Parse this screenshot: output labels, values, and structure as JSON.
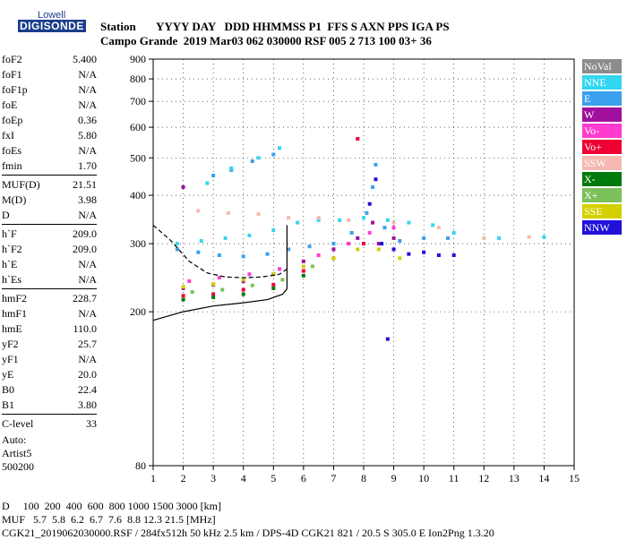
{
  "logo": {
    "top": "Lowell",
    "main": "DIGISONDE"
  },
  "header": {
    "line1": "Station       YYYY DAY   DDD HHMMSS P1  FFS S AXN PPS IGA PS",
    "line2": "Campo Grande  2019 Mar03 062 030000 RSF 005 2 713 100 03+ 36"
  },
  "params": [
    {
      "name": "foF2",
      "value": "5.400"
    },
    {
      "name": "foF1",
      "value": "N/A"
    },
    {
      "name": "foF1p",
      "value": "N/A"
    },
    {
      "name": "foE",
      "value": "N/A"
    },
    {
      "name": "foEp",
      "value": "0.36"
    },
    {
      "name": "fxI",
      "value": "5.80"
    },
    {
      "name": "foEs",
      "value": "N/A"
    },
    {
      "name": "fmin",
      "value": "1.70"
    },
    {
      "name": "MUF(D)",
      "value": "21.51",
      "sep": true
    },
    {
      "name": "M(D)",
      "value": "3.98"
    },
    {
      "name": "D",
      "value": "N/A"
    },
    {
      "name": "h`F",
      "value": "209.0",
      "sep": true
    },
    {
      "name": "h`F2",
      "value": "209.0"
    },
    {
      "name": "h`E",
      "value": "N/A"
    },
    {
      "name": "h`Es",
      "value": "N/A"
    },
    {
      "name": "hmF2",
      "value": "228.7",
      "sep": true
    },
    {
      "name": "hmF1",
      "value": "N/A"
    },
    {
      "name": "hmE",
      "value": "110.0"
    },
    {
      "name": "yF2",
      "value": "25.7"
    },
    {
      "name": "yF1",
      "value": "N/A"
    },
    {
      "name": "yE",
      "value": "20.0"
    },
    {
      "name": "B0",
      "value": "22.4"
    },
    {
      "name": "B1",
      "value": "3.80"
    },
    {
      "name": "C-level",
      "value": "33",
      "sep": true
    }
  ],
  "auto": {
    "line1": "Auto:",
    "line2": "Artist5",
    "line3": "500200"
  },
  "footer": {
    "line1": "D     100  200  400  600  800 1000 1500 3000 [km]",
    "line2": "MUF   5.7  5.8  6.2  6.7  7.6  8.8 12.3 21.5 [MHz]",
    "line3": "CGK21_2019062030000.RSF / 284fx512h 50 kHz 2.5 km / DPS-4D CGK21 821 / 20.5 S 305.0 E Ion2Png 1.3.20"
  },
  "legend": [
    {
      "label": "NoVal",
      "color": "#8c8c8c"
    },
    {
      "label": "NNE",
      "color": "#33d6f0"
    },
    {
      "label": "E",
      "color": "#3aa0ee"
    },
    {
      "label": "W",
      "color": "#a0109c"
    },
    {
      "label": "Vo-",
      "color": "#ff3ccf"
    },
    {
      "label": "Vo+",
      "color": "#ee0033"
    },
    {
      "label": "SSW",
      "color": "#f6b8b0"
    },
    {
      "label": "X-",
      "color": "#007a0c"
    },
    {
      "label": "X+",
      "color": "#7cc05a"
    },
    {
      "label": "SSE",
      "color": "#d4d000"
    },
    {
      "label": "NNW",
      "color": "#2010d8"
    }
  ],
  "chart_data": {
    "type": "scatter",
    "xlim": [
      1,
      15
    ],
    "ylim": [
      80,
      900
    ],
    "x_ticks": [
      1,
      2,
      3,
      4,
      5,
      6,
      7,
      8,
      9,
      10,
      11,
      12,
      13,
      14,
      15
    ],
    "y_ticks": [
      80,
      200,
      300,
      400,
      500,
      600,
      700,
      800,
      900
    ],
    "y_scale": "log",
    "grid": true,
    "series": [
      {
        "name": "E",
        "points": [
          [
            1.8,
            290
          ],
          [
            2.5,
            285
          ],
          [
            3.2,
            280
          ],
          [
            4.0,
            278
          ],
          [
            4.8,
            282
          ],
          [
            5.5,
            290
          ],
          [
            6.2,
            295
          ],
          [
            7.0,
            300
          ],
          [
            7.6,
            320
          ],
          [
            8.1,
            360
          ],
          [
            8.3,
            420
          ],
          [
            8.4,
            480
          ],
          [
            8.7,
            330
          ],
          [
            9.2,
            305
          ],
          [
            10.0,
            310
          ],
          [
            10.8,
            310
          ],
          [
            3.0,
            450
          ],
          [
            3.6,
            465
          ],
          [
            4.3,
            490
          ],
          [
            5.0,
            510
          ]
        ]
      },
      {
        "name": "NNE",
        "points": [
          [
            1.8,
            300
          ],
          [
            2.6,
            305
          ],
          [
            3.4,
            310
          ],
          [
            4.2,
            315
          ],
          [
            5.0,
            325
          ],
          [
            5.8,
            340
          ],
          [
            6.5,
            345
          ],
          [
            7.2,
            345
          ],
          [
            8.0,
            350
          ],
          [
            8.8,
            345
          ],
          [
            9.5,
            340
          ],
          [
            10.3,
            335
          ],
          [
            11.0,
            320
          ],
          [
            12.5,
            310
          ],
          [
            14.0,
            312
          ],
          [
            2.8,
            430
          ],
          [
            3.6,
            470
          ],
          [
            4.5,
            500
          ],
          [
            5.2,
            530
          ]
        ]
      },
      {
        "name": "W",
        "points": [
          [
            2.0,
            230
          ],
          [
            3.0,
            235
          ],
          [
            4.0,
            240
          ],
          [
            5.0,
            250
          ],
          [
            6.0,
            270
          ],
          [
            7.0,
            290
          ],
          [
            7.8,
            310
          ],
          [
            8.3,
            340
          ],
          [
            8.5,
            300
          ],
          [
            9.0,
            310
          ],
          [
            2.0,
            420
          ]
        ]
      },
      {
        "name": "Vo-",
        "points": [
          [
            2.2,
            240
          ],
          [
            3.2,
            245
          ],
          [
            4.2,
            250
          ],
          [
            5.2,
            258
          ],
          [
            6.5,
            280
          ],
          [
            7.5,
            300
          ],
          [
            8.2,
            320
          ],
          [
            9.0,
            330
          ]
        ]
      },
      {
        "name": "Vo+",
        "points": [
          [
            2.0,
            220
          ],
          [
            3.0,
            222
          ],
          [
            4.0,
            228
          ],
          [
            5.0,
            235
          ],
          [
            6.0,
            255
          ],
          [
            7.0,
            275
          ],
          [
            8.0,
            300
          ],
          [
            7.8,
            560
          ]
        ]
      },
      {
        "name": "SSW",
        "points": [
          [
            2.5,
            365
          ],
          [
            3.5,
            360
          ],
          [
            4.5,
            358
          ],
          [
            5.5,
            350
          ],
          [
            6.5,
            350
          ],
          [
            7.5,
            345
          ],
          [
            9.0,
            340
          ],
          [
            10.5,
            330
          ],
          [
            12.0,
            310
          ],
          [
            13.5,
            312
          ]
        ]
      },
      {
        "name": "X-",
        "points": [
          [
            2.0,
            215
          ],
          [
            3.0,
            218
          ],
          [
            4.0,
            222
          ],
          [
            5.0,
            230
          ],
          [
            6.0,
            248
          ]
        ]
      },
      {
        "name": "X+",
        "points": [
          [
            2.3,
            225
          ],
          [
            3.3,
            228
          ],
          [
            4.3,
            234
          ],
          [
            5.3,
            242
          ],
          [
            6.3,
            262
          ]
        ]
      },
      {
        "name": "SSE",
        "points": [
          [
            2.0,
            232
          ],
          [
            3.0,
            236
          ],
          [
            4.0,
            242
          ],
          [
            5.0,
            250
          ],
          [
            6.0,
            262
          ],
          [
            7.0,
            275
          ],
          [
            7.8,
            290
          ],
          [
            8.5,
            290
          ],
          [
            9.2,
            275
          ]
        ]
      },
      {
        "name": "NNW",
        "points": [
          [
            8.2,
            380
          ],
          [
            8.4,
            440
          ],
          [
            8.6,
            300
          ],
          [
            9.0,
            290
          ],
          [
            9.5,
            282
          ],
          [
            10.0,
            285
          ],
          [
            10.5,
            280
          ],
          [
            11.0,
            280
          ],
          [
            8.8,
            170
          ]
        ]
      }
    ],
    "profile_curve": [
      [
        1.0,
        190
      ],
      [
        2.0,
        200
      ],
      [
        3.0,
        207
      ],
      [
        4.0,
        211
      ],
      [
        4.8,
        215
      ],
      [
        5.3,
        222
      ],
      [
        5.45,
        229
      ]
    ],
    "dashed_curve": [
      [
        1.0,
        335
      ],
      [
        1.6,
        305
      ],
      [
        2.2,
        270
      ],
      [
        2.8,
        252
      ],
      [
        3.4,
        246
      ],
      [
        4.0,
        245
      ],
      [
        4.6,
        246
      ],
      [
        5.2,
        250
      ],
      [
        5.45,
        258
      ]
    ],
    "vertical_line": {
      "x": 5.45,
      "y": [
        229,
        335
      ]
    }
  }
}
